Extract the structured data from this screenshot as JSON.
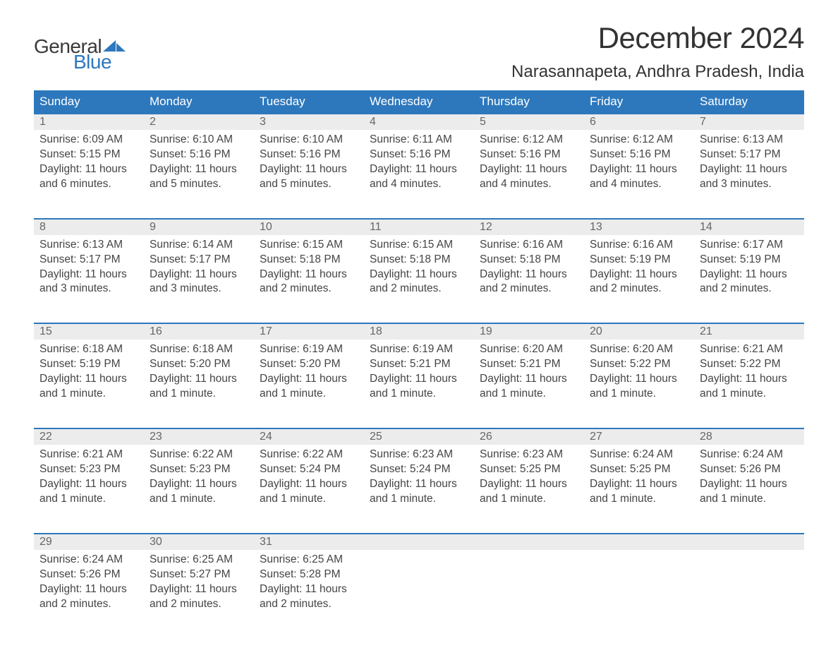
{
  "logo": {
    "part1": "General",
    "part2": "Blue"
  },
  "title": "December 2024",
  "location": "Narasannapeta, Andhra Pradesh, India",
  "columns": [
    "Sunday",
    "Monday",
    "Tuesday",
    "Wednesday",
    "Thursday",
    "Friday",
    "Saturday"
  ],
  "style": {
    "header_bg": "#2d78bd",
    "header_fg": "#ffffff",
    "daynum_bg": "#ececec",
    "daynum_border_top": "#2d78bd",
    "text_color": "#444444",
    "logo_blue": "#2d78bd",
    "background": "#ffffff",
    "title_fontsize": 42,
    "location_fontsize": 24,
    "header_fontsize": 17,
    "body_fontsize": 15.5
  },
  "weeks": [
    [
      {
        "d": "1",
        "sr": "Sunrise: 6:09 AM",
        "ss": "Sunset: 5:15 PM",
        "dl1": "Daylight: 11 hours",
        "dl2": "and 6 minutes."
      },
      {
        "d": "2",
        "sr": "Sunrise: 6:10 AM",
        "ss": "Sunset: 5:16 PM",
        "dl1": "Daylight: 11 hours",
        "dl2": "and 5 minutes."
      },
      {
        "d": "3",
        "sr": "Sunrise: 6:10 AM",
        "ss": "Sunset: 5:16 PM",
        "dl1": "Daylight: 11 hours",
        "dl2": "and 5 minutes."
      },
      {
        "d": "4",
        "sr": "Sunrise: 6:11 AM",
        "ss": "Sunset: 5:16 PM",
        "dl1": "Daylight: 11 hours",
        "dl2": "and 4 minutes."
      },
      {
        "d": "5",
        "sr": "Sunrise: 6:12 AM",
        "ss": "Sunset: 5:16 PM",
        "dl1": "Daylight: 11 hours",
        "dl2": "and 4 minutes."
      },
      {
        "d": "6",
        "sr": "Sunrise: 6:12 AM",
        "ss": "Sunset: 5:16 PM",
        "dl1": "Daylight: 11 hours",
        "dl2": "and 4 minutes."
      },
      {
        "d": "7",
        "sr": "Sunrise: 6:13 AM",
        "ss": "Sunset: 5:17 PM",
        "dl1": "Daylight: 11 hours",
        "dl2": "and 3 minutes."
      }
    ],
    [
      {
        "d": "8",
        "sr": "Sunrise: 6:13 AM",
        "ss": "Sunset: 5:17 PM",
        "dl1": "Daylight: 11 hours",
        "dl2": "and 3 minutes."
      },
      {
        "d": "9",
        "sr": "Sunrise: 6:14 AM",
        "ss": "Sunset: 5:17 PM",
        "dl1": "Daylight: 11 hours",
        "dl2": "and 3 minutes."
      },
      {
        "d": "10",
        "sr": "Sunrise: 6:15 AM",
        "ss": "Sunset: 5:18 PM",
        "dl1": "Daylight: 11 hours",
        "dl2": "and 2 minutes."
      },
      {
        "d": "11",
        "sr": "Sunrise: 6:15 AM",
        "ss": "Sunset: 5:18 PM",
        "dl1": "Daylight: 11 hours",
        "dl2": "and 2 minutes."
      },
      {
        "d": "12",
        "sr": "Sunrise: 6:16 AM",
        "ss": "Sunset: 5:18 PM",
        "dl1": "Daylight: 11 hours",
        "dl2": "and 2 minutes."
      },
      {
        "d": "13",
        "sr": "Sunrise: 6:16 AM",
        "ss": "Sunset: 5:19 PM",
        "dl1": "Daylight: 11 hours",
        "dl2": "and 2 minutes."
      },
      {
        "d": "14",
        "sr": "Sunrise: 6:17 AM",
        "ss": "Sunset: 5:19 PM",
        "dl1": "Daylight: 11 hours",
        "dl2": "and 2 minutes."
      }
    ],
    [
      {
        "d": "15",
        "sr": "Sunrise: 6:18 AM",
        "ss": "Sunset: 5:19 PM",
        "dl1": "Daylight: 11 hours",
        "dl2": "and 1 minute."
      },
      {
        "d": "16",
        "sr": "Sunrise: 6:18 AM",
        "ss": "Sunset: 5:20 PM",
        "dl1": "Daylight: 11 hours",
        "dl2": "and 1 minute."
      },
      {
        "d": "17",
        "sr": "Sunrise: 6:19 AM",
        "ss": "Sunset: 5:20 PM",
        "dl1": "Daylight: 11 hours",
        "dl2": "and 1 minute."
      },
      {
        "d": "18",
        "sr": "Sunrise: 6:19 AM",
        "ss": "Sunset: 5:21 PM",
        "dl1": "Daylight: 11 hours",
        "dl2": "and 1 minute."
      },
      {
        "d": "19",
        "sr": "Sunrise: 6:20 AM",
        "ss": "Sunset: 5:21 PM",
        "dl1": "Daylight: 11 hours",
        "dl2": "and 1 minute."
      },
      {
        "d": "20",
        "sr": "Sunrise: 6:20 AM",
        "ss": "Sunset: 5:22 PM",
        "dl1": "Daylight: 11 hours",
        "dl2": "and 1 minute."
      },
      {
        "d": "21",
        "sr": "Sunrise: 6:21 AM",
        "ss": "Sunset: 5:22 PM",
        "dl1": "Daylight: 11 hours",
        "dl2": "and 1 minute."
      }
    ],
    [
      {
        "d": "22",
        "sr": "Sunrise: 6:21 AM",
        "ss": "Sunset: 5:23 PM",
        "dl1": "Daylight: 11 hours",
        "dl2": "and 1 minute."
      },
      {
        "d": "23",
        "sr": "Sunrise: 6:22 AM",
        "ss": "Sunset: 5:23 PM",
        "dl1": "Daylight: 11 hours",
        "dl2": "and 1 minute."
      },
      {
        "d": "24",
        "sr": "Sunrise: 6:22 AM",
        "ss": "Sunset: 5:24 PM",
        "dl1": "Daylight: 11 hours",
        "dl2": "and 1 minute."
      },
      {
        "d": "25",
        "sr": "Sunrise: 6:23 AM",
        "ss": "Sunset: 5:24 PM",
        "dl1": "Daylight: 11 hours",
        "dl2": "and 1 minute."
      },
      {
        "d": "26",
        "sr": "Sunrise: 6:23 AM",
        "ss": "Sunset: 5:25 PM",
        "dl1": "Daylight: 11 hours",
        "dl2": "and 1 minute."
      },
      {
        "d": "27",
        "sr": "Sunrise: 6:24 AM",
        "ss": "Sunset: 5:25 PM",
        "dl1": "Daylight: 11 hours",
        "dl2": "and 1 minute."
      },
      {
        "d": "28",
        "sr": "Sunrise: 6:24 AM",
        "ss": "Sunset: 5:26 PM",
        "dl1": "Daylight: 11 hours",
        "dl2": "and 1 minute."
      }
    ],
    [
      {
        "d": "29",
        "sr": "Sunrise: 6:24 AM",
        "ss": "Sunset: 5:26 PM",
        "dl1": "Daylight: 11 hours",
        "dl2": "and 2 minutes."
      },
      {
        "d": "30",
        "sr": "Sunrise: 6:25 AM",
        "ss": "Sunset: 5:27 PM",
        "dl1": "Daylight: 11 hours",
        "dl2": "and 2 minutes."
      },
      {
        "d": "31",
        "sr": "Sunrise: 6:25 AM",
        "ss": "Sunset: 5:28 PM",
        "dl1": "Daylight: 11 hours",
        "dl2": "and 2 minutes."
      },
      null,
      null,
      null,
      null
    ]
  ]
}
